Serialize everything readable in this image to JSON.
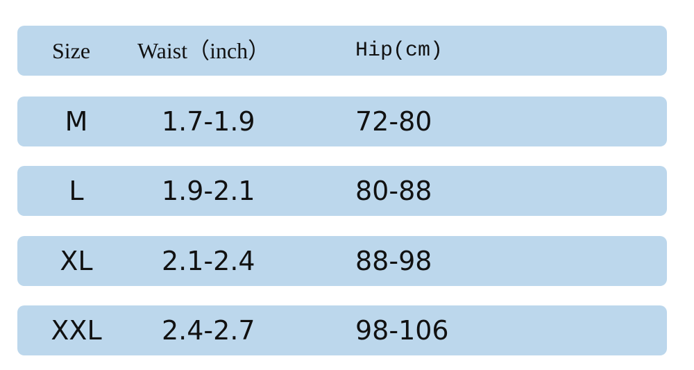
{
  "table": {
    "header": [
      "Size",
      "Waist（inch）",
      "Hip(cm)"
    ],
    "rows": [
      [
        "M",
        "1.7-1.9",
        "72-80"
      ],
      [
        "L",
        "1.9-2.1",
        "80-88"
      ],
      [
        "XL",
        "2.1-2.4",
        "88-98"
      ],
      [
        "XXL",
        "2.4-2.7",
        "98-106"
      ]
    ]
  }
}
